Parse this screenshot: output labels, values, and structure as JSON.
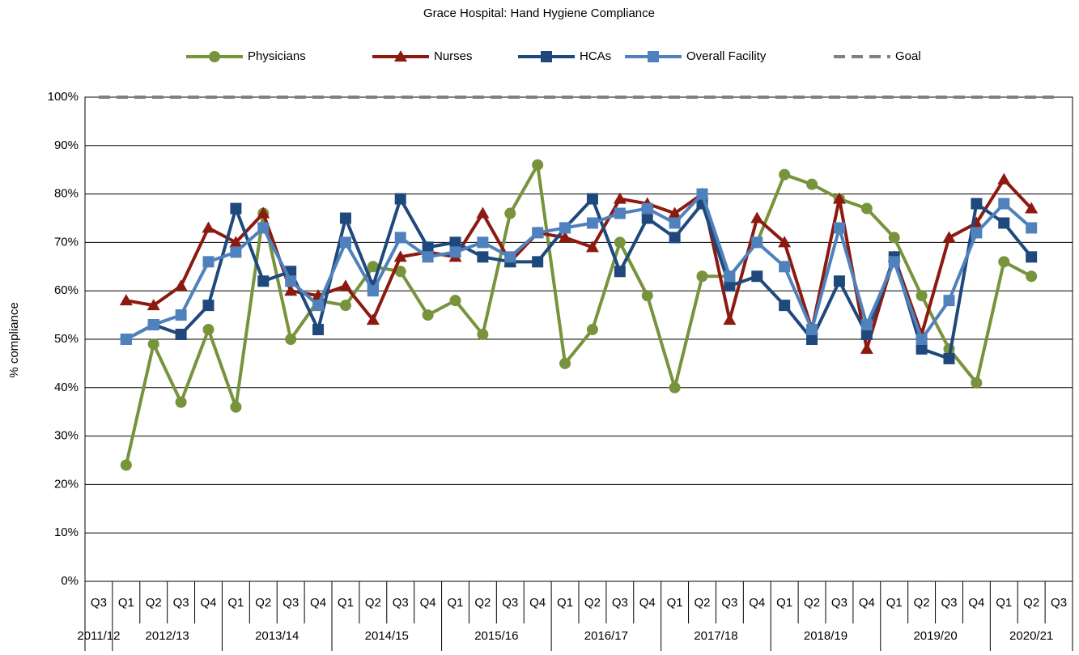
{
  "chart_data": {
    "type": "line",
    "title": "Grace Hospital: Hand Hygiene Compliance",
    "y_label": "% compliance",
    "groups": [
      {
        "label": "2011/12",
        "categories": [
          "Q3"
        ]
      },
      {
        "label": "2012/13",
        "categories": [
          "Q1",
          "Q2",
          "Q3",
          "Q4"
        ]
      },
      {
        "label": "2013/14",
        "categories": [
          "Q1",
          "Q2",
          "Q3",
          "Q4"
        ]
      },
      {
        "label": "2014/15",
        "categories": [
          "Q1",
          "Q2",
          "Q3",
          "Q4"
        ]
      },
      {
        "label": "2015/16",
        "categories": [
          "Q1",
          "Q2",
          "Q3",
          "Q4"
        ]
      },
      {
        "label": "2016/17",
        "categories": [
          "Q1",
          "Q2",
          "Q3",
          "Q4"
        ]
      },
      {
        "label": "2017/18",
        "categories": [
          "Q1",
          "Q2",
          "Q3",
          "Q4"
        ]
      },
      {
        "label": "2018/19",
        "categories": [
          "Q1",
          "Q2",
          "Q3",
          "Q4"
        ]
      },
      {
        "label": "2019/20",
        "categories": [
          "Q1",
          "Q2",
          "Q3",
          "Q4"
        ]
      },
      {
        "label": "2020/21",
        "categories": [
          "Q1",
          "Q2",
          "Q3"
        ]
      }
    ],
    "series": [
      {
        "name": "Physicians",
        "color": "#77933c",
        "marker": "circle",
        "values": [
          null,
          24,
          49,
          37,
          52,
          36,
          76,
          50,
          58,
          57,
          65,
          64,
          55,
          58,
          51,
          76,
          86,
          45,
          52,
          70,
          59,
          40,
          63,
          63,
          70,
          84,
          82,
          79,
          77,
          71,
          59,
          48,
          41,
          66,
          63,
          null
        ]
      },
      {
        "name": "Nurses",
        "color": "#8c1a11",
        "marker": "triangle",
        "values": [
          null,
          58,
          57,
          61,
          73,
          70,
          76,
          60,
          59,
          61,
          54,
          67,
          68,
          67,
          76,
          66,
          72,
          71,
          69,
          79,
          78,
          76,
          80,
          54,
          75,
          70,
          52,
          79,
          48,
          67,
          51,
          71,
          74,
          83,
          77,
          null
        ]
      },
      {
        "name": "HCAs",
        "color": "#1f497d",
        "marker": "square",
        "values": [
          null,
          50,
          53,
          51,
          57,
          77,
          62,
          64,
          52,
          75,
          61,
          79,
          69,
          70,
          67,
          66,
          66,
          73,
          79,
          64,
          75,
          71,
          78,
          61,
          63,
          57,
          50,
          62,
          51,
          67,
          48,
          46,
          78,
          74,
          67,
          null
        ]
      },
      {
        "name": "Overall Facility",
        "color": "#4f81bd",
        "marker": "square",
        "values": [
          null,
          50,
          53,
          55,
          66,
          68,
          73,
          62,
          57,
          70,
          60,
          71,
          67,
          68,
          70,
          67,
          72,
          73,
          74,
          76,
          77,
          74,
          80,
          63,
          70,
          65,
          52,
          73,
          53,
          66,
          50,
          58,
          72,
          78,
          73,
          null
        ]
      },
      {
        "name": "Goal",
        "color": "#808080",
        "marker": "none",
        "dashed": true,
        "values": [
          100,
          100,
          100,
          100,
          100,
          100,
          100,
          100,
          100,
          100,
          100,
          100,
          100,
          100,
          100,
          100,
          100,
          100,
          100,
          100,
          100,
          100,
          100,
          100,
          100,
          100,
          100,
          100,
          100,
          100,
          100,
          100,
          100,
          100,
          100,
          100
        ]
      }
    ],
    "ylim": [
      0,
      100
    ],
    "yticks": [
      {
        "value": 0,
        "label": "0%"
      },
      {
        "value": 10,
        "label": "10%"
      },
      {
        "value": 20,
        "label": "20%"
      },
      {
        "value": 30,
        "label": "30%"
      },
      {
        "value": 40,
        "label": "40%"
      },
      {
        "value": 50,
        "label": "50%"
      },
      {
        "value": 60,
        "label": "60%"
      },
      {
        "value": 70,
        "label": "70%"
      },
      {
        "value": 80,
        "label": "80%"
      },
      {
        "value": 90,
        "label": "90%"
      },
      {
        "value": 100,
        "label": "100%"
      }
    ],
    "grid": true,
    "legend": "top"
  }
}
